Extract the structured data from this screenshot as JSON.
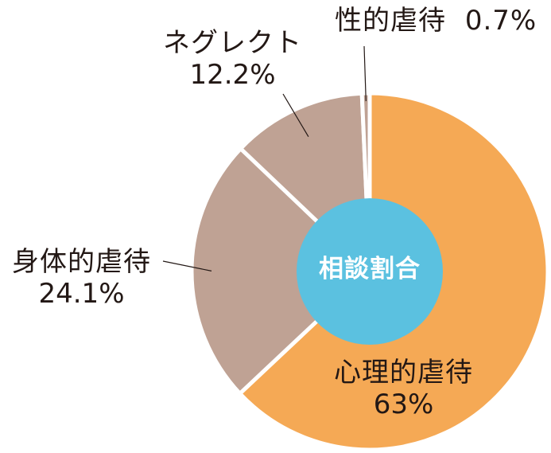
{
  "chart_data": {
    "type": "pie",
    "center_label": "相談割合",
    "slices": [
      {
        "name": "心理的虐待",
        "value": 63,
        "label": "63%",
        "color": "#f5a955"
      },
      {
        "name": "身体的虐待",
        "value": 24.1,
        "label": "24.1%",
        "color": "#bfa294"
      },
      {
        "name": "ネグレクト",
        "value": 12.2,
        "label": "12.2%",
        "color": "#bfa294"
      },
      {
        "name": "性的虐待",
        "value": 0.7,
        "label": "0.7%",
        "color": "#bfa294"
      }
    ],
    "start_angle_deg": 0,
    "direction": "clockwise",
    "center_color": "#5bc1e0"
  }
}
